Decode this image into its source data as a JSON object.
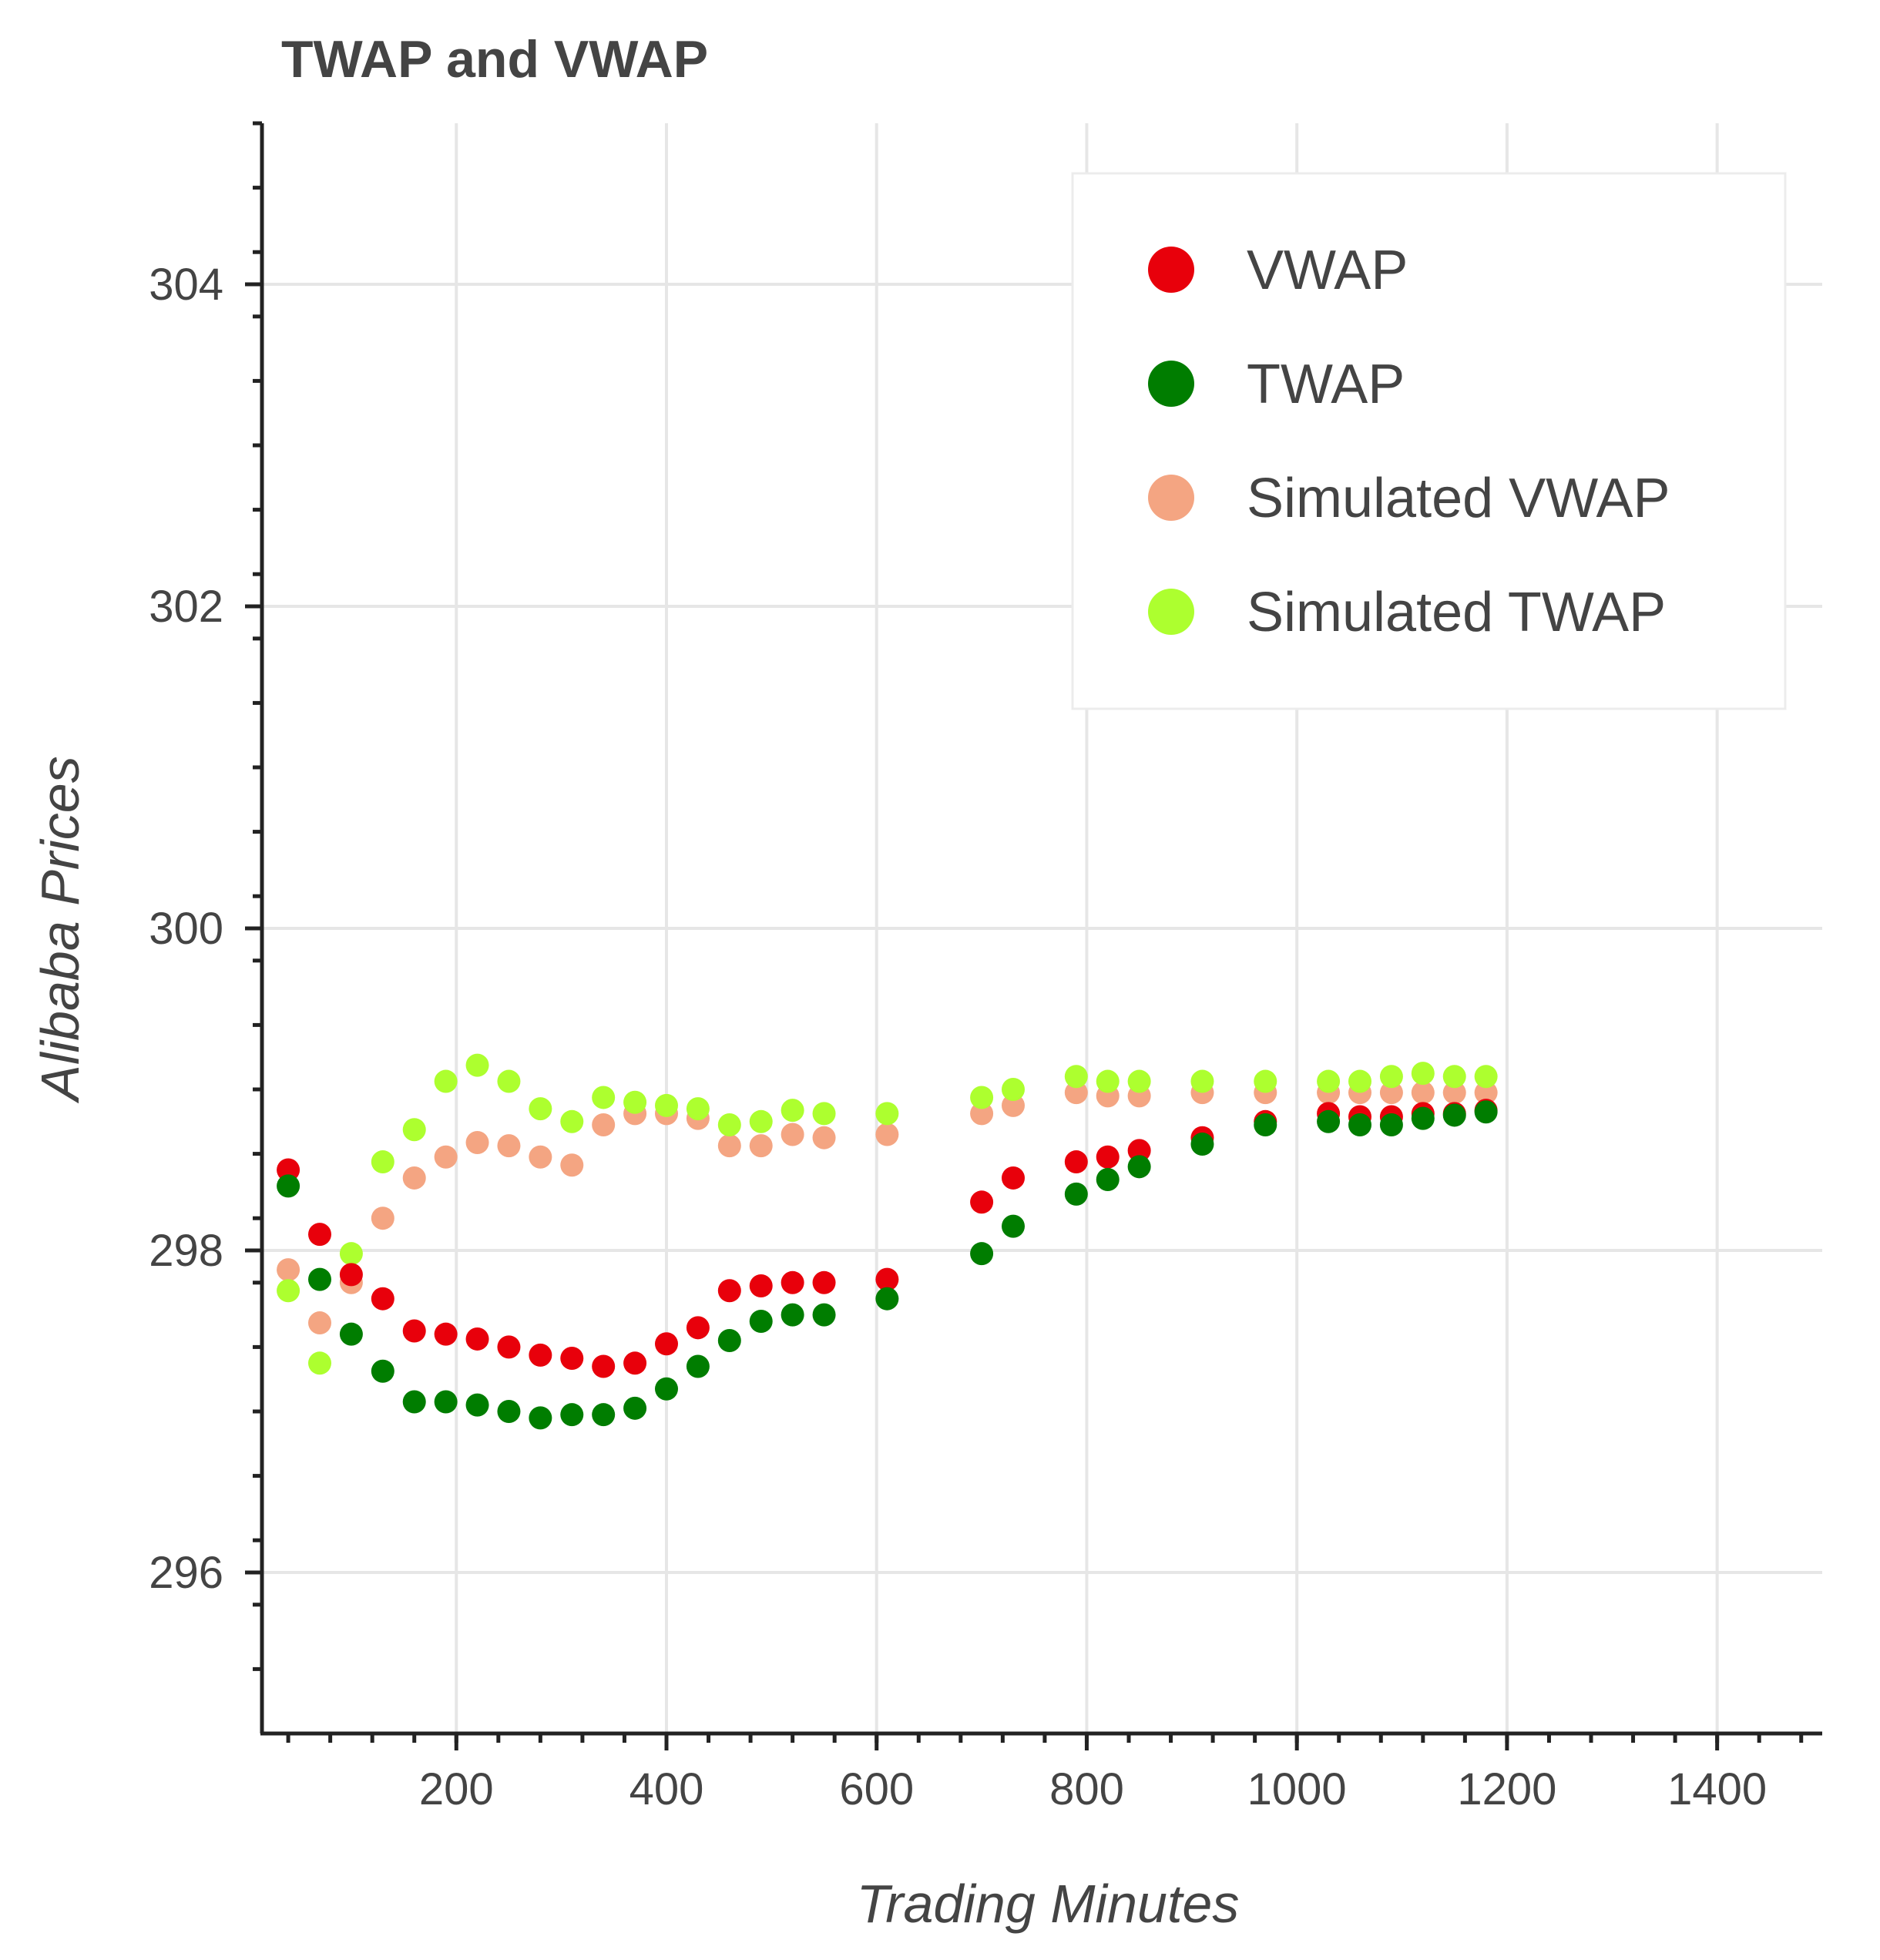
{
  "chart_data": {
    "type": "scatter",
    "title": "TWAP and VWAP",
    "xlabel": "Trading Minutes",
    "ylabel": "Alibaba Prices",
    "xlim": [
      15,
      1500
    ],
    "ylim": [
      295,
      305
    ],
    "x_ticks": [
      200,
      400,
      600,
      800,
      1000,
      1200,
      1400
    ],
    "y_ticks": [
      296,
      298,
      300,
      302,
      304
    ],
    "grid": true,
    "legend_position": "top-right",
    "x": [
      40,
      70,
      100,
      130,
      160,
      190,
      220,
      250,
      280,
      310,
      340,
      370,
      400,
      430,
      460,
      490,
      520,
      550,
      610,
      700,
      730,
      790,
      820,
      850,
      910,
      970,
      1030,
      1060,
      1090,
      1120,
      1150,
      1180
    ],
    "series": [
      {
        "name": "VWAP",
        "color": "#e8000b",
        "values": [
          298.5,
          298.1,
          297.85,
          297.7,
          297.5,
          297.48,
          297.45,
          297.4,
          297.35,
          297.33,
          297.28,
          297.3,
          297.42,
          297.52,
          297.75,
          297.78,
          297.8,
          297.8,
          297.82,
          298.3,
          298.45,
          298.55,
          298.58,
          298.62,
          298.7,
          298.8,
          298.85,
          298.83,
          298.83,
          298.85,
          298.85,
          298.87
        ]
      },
      {
        "name": "TWAP",
        "color": "#007d00",
        "values": [
          298.4,
          297.82,
          297.48,
          297.25,
          297.06,
          297.06,
          297.04,
          297.0,
          296.96,
          296.98,
          296.98,
          297.02,
          297.14,
          297.28,
          297.44,
          297.56,
          297.6,
          297.6,
          297.7,
          297.98,
          298.15,
          298.35,
          298.44,
          298.52,
          298.66,
          298.78,
          298.8,
          298.78,
          298.78,
          298.82,
          298.84,
          298.86
        ]
      },
      {
        "name": "Simulated VWAP",
        "color": "#f4a582",
        "values": [
          297.88,
          297.55,
          297.8,
          298.2,
          298.45,
          298.58,
          298.67,
          298.65,
          298.58,
          298.53,
          298.78,
          298.85,
          298.85,
          298.82,
          298.65,
          298.65,
          298.72,
          298.7,
          298.72,
          298.85,
          298.9,
          298.98,
          298.96,
          298.96,
          298.98,
          298.98,
          298.98,
          298.98,
          298.98,
          298.98,
          298.98,
          298.98
        ]
      },
      {
        "name": "Simulated TWAP",
        "color": "#adff2f",
        "values": [
          297.75,
          297.3,
          297.98,
          298.55,
          298.75,
          299.05,
          299.15,
          299.05,
          298.88,
          298.8,
          298.95,
          298.92,
          298.9,
          298.88,
          298.78,
          298.8,
          298.87,
          298.85,
          298.85,
          298.95,
          299.0,
          299.08,
          299.05,
          299.05,
          299.05,
          299.05,
          299.05,
          299.05,
          299.08,
          299.1,
          299.08,
          299.08
        ]
      }
    ]
  }
}
